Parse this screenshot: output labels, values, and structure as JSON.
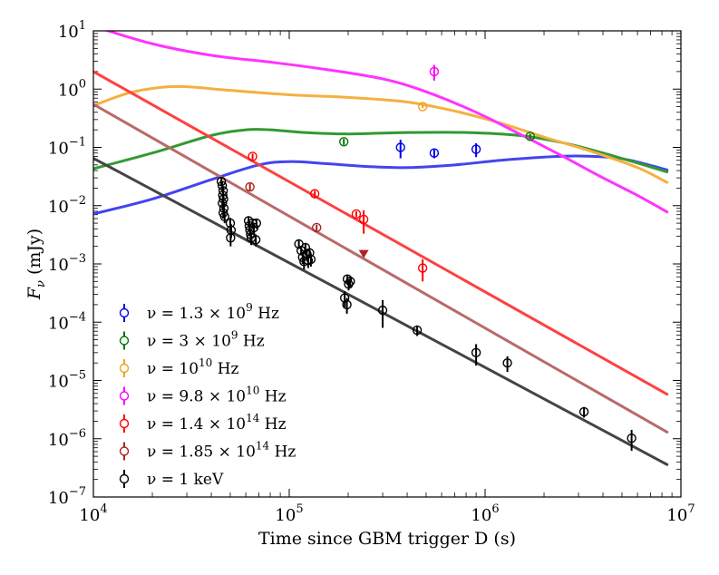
{
  "chart_data": {
    "type": "scatter",
    "xscale": "log",
    "yscale": "log",
    "xlim": [
      10000,
      10000000
    ],
    "ylim": [
      1e-07,
      10
    ],
    "xlabel": "Time since GBM trigger D (s)",
    "ylabel": "F_ν (mJy)",
    "ylabel_parts": {
      "sym": "F",
      "sub": "ν",
      "unit": " (mJy)"
    },
    "xticks": [
      {
        "value": 10000,
        "base": "10",
        "exp": "4"
      },
      {
        "value": 100000,
        "base": "10",
        "exp": "5"
      },
      {
        "value": 1000000,
        "base": "10",
        "exp": "6"
      },
      {
        "value": 10000000,
        "base": "10",
        "exp": "7"
      }
    ],
    "yticks": [
      {
        "value": 1e-07,
        "base": "10",
        "exp": "−7"
      },
      {
        "value": 1e-06,
        "base": "10",
        "exp": "−6"
      },
      {
        "value": 1e-05,
        "base": "10",
        "exp": "−5"
      },
      {
        "value": 0.0001,
        "base": "10",
        "exp": "−4"
      },
      {
        "value": 0.001,
        "base": "10",
        "exp": "−3"
      },
      {
        "value": 0.01,
        "base": "10",
        "exp": "−2"
      },
      {
        "value": 0.1,
        "base": "10",
        "exp": "−1"
      },
      {
        "value": 1,
        "base": "10",
        "exp": "0"
      },
      {
        "value": 10,
        "base": "10",
        "exp": "1"
      }
    ],
    "legend_position": "lower-left",
    "series": [
      {
        "name": "1.3e9 Hz",
        "color": "#0000ee",
        "line_color": "#4444ee",
        "legend": {
          "pre": "ν = 1.3 × 10",
          "exp": "9",
          "post": " Hz"
        },
        "points": [
          [
            370000,
            0.1,
            0.035
          ],
          [
            550000,
            0.08,
            0.015
          ],
          [
            900000,
            0.093,
            0.025
          ]
        ],
        "model": [
          [
            10000,
            0.0072
          ],
          [
            20000,
            0.013
          ],
          [
            40000,
            0.028
          ],
          [
            70000,
            0.05
          ],
          [
            100000,
            0.057
          ],
          [
            150000,
            0.053
          ],
          [
            250000,
            0.047
          ],
          [
            400000,
            0.045
          ],
          [
            700000,
            0.05
          ],
          [
            1200000,
            0.06
          ],
          [
            2000000,
            0.068
          ],
          [
            3000000,
            0.071
          ],
          [
            5000000,
            0.064
          ],
          [
            8500000,
            0.041
          ]
        ]
      },
      {
        "name": "3e9 Hz",
        "color": "#007700",
        "line_color": "#339933",
        "legend": {
          "pre": "ν = 3 × 10",
          "exp": "9",
          "post": " Hz"
        },
        "points": [
          [
            190000,
            0.125,
            0.015
          ],
          [
            1700000,
            0.155,
            0.015
          ]
        ],
        "model": [
          [
            10000,
            0.043
          ],
          [
            20000,
            0.08
          ],
          [
            40000,
            0.16
          ],
          [
            60000,
            0.2
          ],
          [
            80000,
            0.2
          ],
          [
            120000,
            0.18
          ],
          [
            200000,
            0.17
          ],
          [
            400000,
            0.18
          ],
          [
            800000,
            0.18
          ],
          [
            1500000,
            0.16
          ],
          [
            2500000,
            0.12
          ],
          [
            4000000,
            0.08
          ],
          [
            8500000,
            0.038
          ]
        ]
      },
      {
        "name": "1e10 Hz",
        "color": "#f0a020",
        "line_color": "#f5b040",
        "legend": {
          "pre": "ν = 10",
          "exp": "10",
          "post": " Hz"
        },
        "points": [
          [
            480000,
            0.5,
            0.03
          ]
        ],
        "model": [
          [
            10000,
            0.52
          ],
          [
            15000,
            0.85
          ],
          [
            22000,
            1.07
          ],
          [
            30000,
            1.1
          ],
          [
            50000,
            0.95
          ],
          [
            100000,
            0.8
          ],
          [
            200000,
            0.72
          ],
          [
            400000,
            0.6
          ],
          [
            700000,
            0.42
          ],
          [
            1200000,
            0.26
          ],
          [
            2000000,
            0.15
          ],
          [
            3500000,
            0.085
          ],
          [
            6000000,
            0.045
          ],
          [
            8500000,
            0.025
          ]
        ]
      },
      {
        "name": "9.8e10 Hz",
        "color": "#ff00ff",
        "line_color": "#ff33ff",
        "legend": {
          "pre": "ν = 9.8 × 10",
          "exp": "10",
          "post": " Hz"
        },
        "points": [
          [
            550000,
            2.0,
            0.6
          ]
        ],
        "model": [
          [
            10000,
            12
          ],
          [
            20000,
            6
          ],
          [
            40000,
            3.8
          ],
          [
            80000,
            2.9
          ],
          [
            150000,
            2.2
          ],
          [
            300000,
            1.5
          ],
          [
            500000,
            0.9
          ],
          [
            900000,
            0.4
          ],
          [
            1500000,
            0.17
          ],
          [
            2500000,
            0.07
          ],
          [
            4000000,
            0.03
          ],
          [
            6000000,
            0.015
          ],
          [
            8500000,
            0.0078
          ]
        ]
      },
      {
        "name": "1.4e14 Hz",
        "color": "#ff0000",
        "line_color": "#ff4040",
        "legend": {
          "pre": "ν = 1.4 × 10",
          "exp": "14",
          "post": " Hz"
        },
        "points": [
          [
            65000,
            0.07,
            0.008
          ],
          [
            135000,
            0.016,
            0.002
          ],
          [
            220000,
            0.0072,
            0.0008
          ],
          [
            240000,
            0.0058,
            0.0025
          ],
          [
            480000,
            0.00085,
            0.00035
          ]
        ],
        "model": [
          [
            10000,
            2.0
          ],
          [
            8500000,
            5.8e-06
          ]
        ]
      },
      {
        "name": "1.85e14 Hz",
        "color": "#b02020",
        "line_color": "#b86a6a",
        "legend": {
          "pre": "ν = 1.85 × 10",
          "exp": "14",
          "post": " Hz"
        },
        "points": [
          [
            63000,
            0.021,
            0.003
          ],
          [
            138000,
            0.0042,
            0.0005
          ]
        ],
        "upper_limits": [
          [
            240000,
            0.0015
          ]
        ],
        "model": [
          [
            10000,
            0.55
          ],
          [
            8500000,
            1.3e-06
          ]
        ]
      },
      {
        "name": "1 keV",
        "color": "#000000",
        "line_color": "#444444",
        "legend": {
          "pre": "ν = 1 keV",
          "exp": "",
          "post": ""
        },
        "points": [
          [
            45000,
            0.026,
            0.004
          ],
          [
            45500,
            0.022,
            0.004
          ],
          [
            46000,
            0.018,
            0.003
          ],
          [
            45800,
            0.015,
            0.003
          ],
          [
            46200,
            0.013,
            0.002
          ],
          [
            45600,
            0.011,
            0.002
          ],
          [
            46400,
            0.009,
            0.002
          ],
          [
            46000,
            0.0075,
            0.0015
          ],
          [
            46800,
            0.0065,
            0.0015
          ],
          [
            50000,
            0.005,
            0.0012
          ],
          [
            50500,
            0.0038,
            0.001
          ],
          [
            50200,
            0.0028,
            0.0008
          ],
          [
            62000,
            0.0055,
            0.001
          ],
          [
            62500,
            0.0045,
            0.0009
          ],
          [
            63000,
            0.0038,
            0.0008
          ],
          [
            63500,
            0.0032,
            0.0007
          ],
          [
            64000,
            0.0028,
            0.0007
          ],
          [
            65000,
            0.005,
            0.001
          ],
          [
            66000,
            0.0042,
            0.0009
          ],
          [
            67500,
            0.0026,
            0.0006
          ],
          [
            68000,
            0.005,
            0.001
          ],
          [
            112000,
            0.0022,
            0.0004
          ],
          [
            115000,
            0.0017,
            0.0003
          ],
          [
            117000,
            0.0013,
            0.0003
          ],
          [
            119000,
            0.0011,
            0.0003
          ],
          [
            121000,
            0.0019,
            0.0004
          ],
          [
            123000,
            0.0015,
            0.0003
          ],
          [
            125000,
            0.00115,
            0.0003
          ],
          [
            127000,
            0.00155,
            0.0003
          ],
          [
            129000,
            0.0012,
            0.0003
          ],
          [
            192000,
            0.00026,
            8e-05
          ],
          [
            197000,
            0.0002,
            6e-05
          ],
          [
            198000,
            0.00055,
            0.0001
          ],
          [
            201000,
            0.00045,
            0.0001
          ],
          [
            205000,
            0.0005,
            0.00012
          ],
          [
            300000,
            0.00016,
            8e-05
          ],
          [
            450000,
            7.3e-05,
            1.5e-05
          ],
          [
            900000,
            3e-05,
            1.2e-05
          ],
          [
            1300000,
            2e-05,
            6e-06
          ],
          [
            3200000,
            2.9e-06,
            6e-07
          ],
          [
            5600000,
            1.02e-06,
            4e-07
          ]
        ],
        "model": [
          [
            10000,
            0.065
          ],
          [
            8500000,
            3.6e-07
          ]
        ]
      }
    ]
  }
}
